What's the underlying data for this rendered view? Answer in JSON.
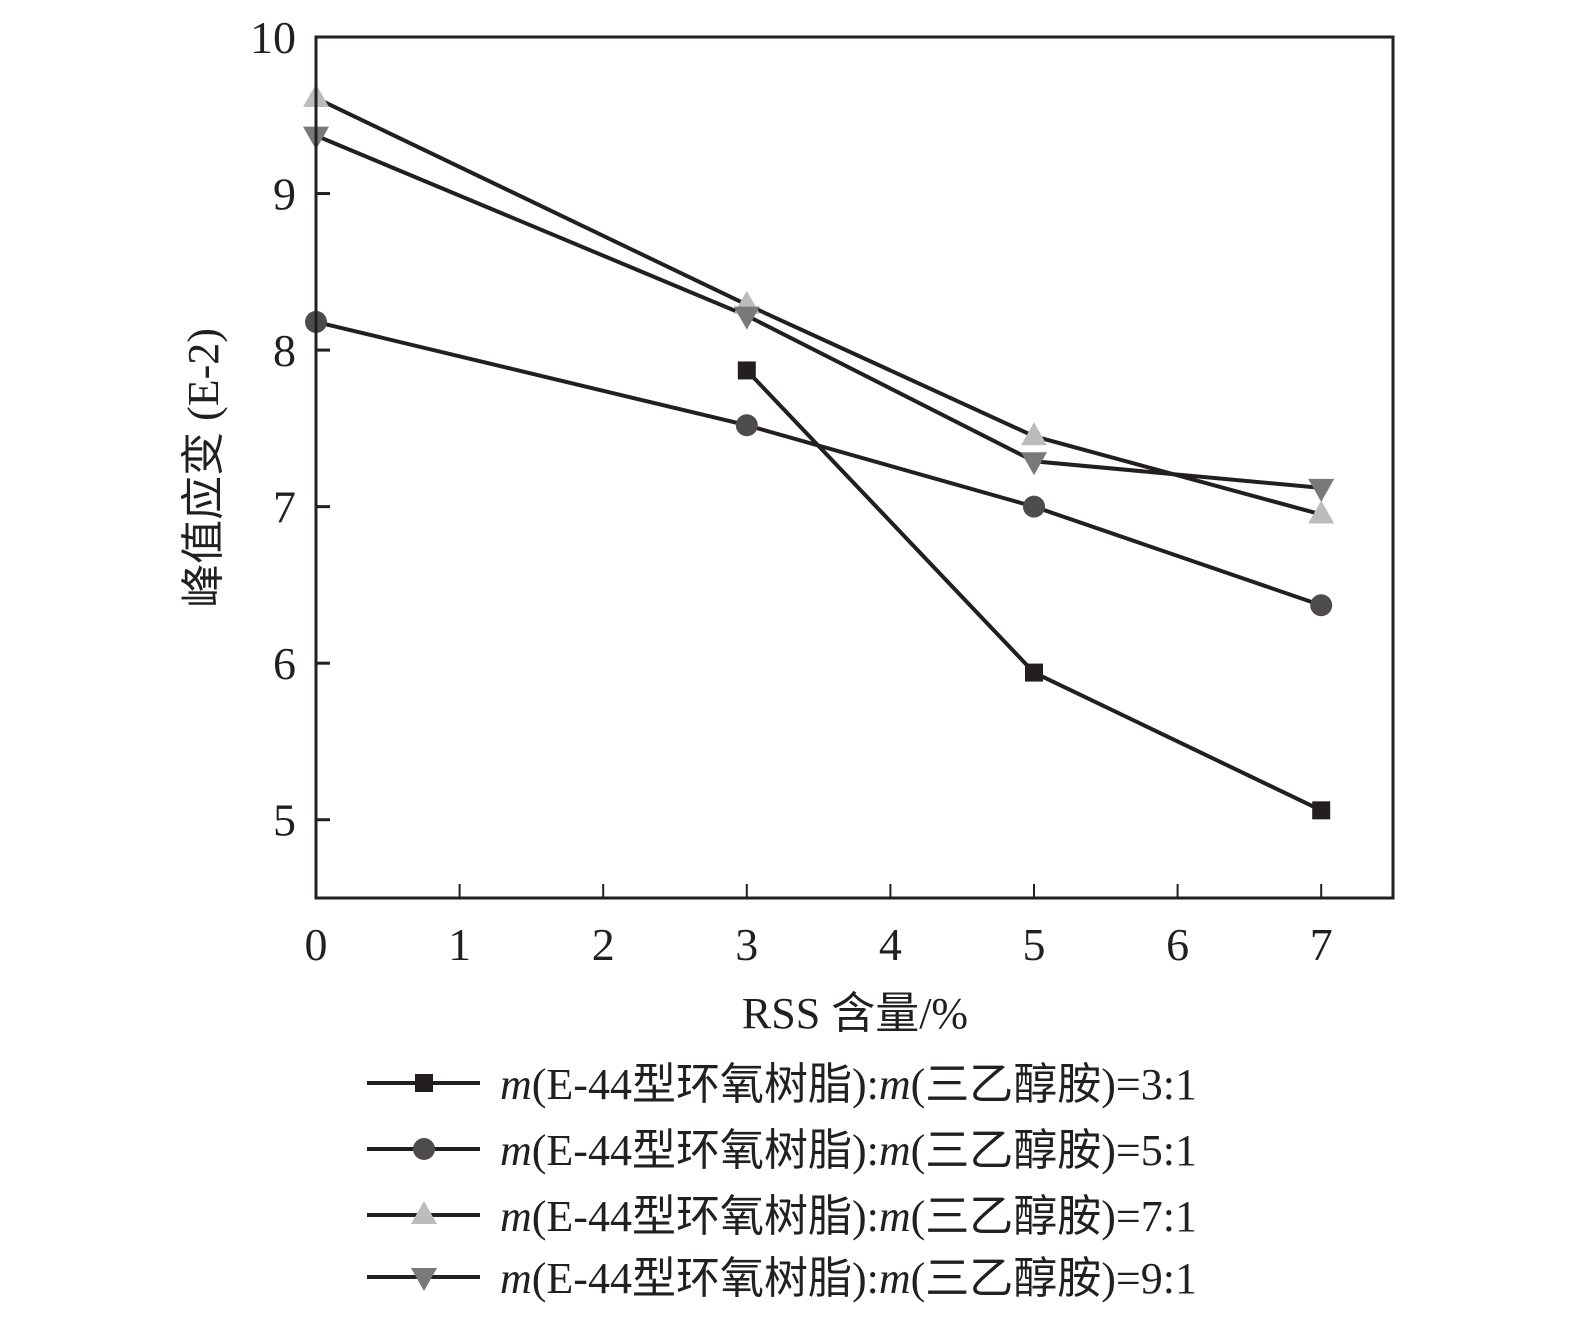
{
  "chart_data": {
    "type": "line",
    "title": "",
    "xlabel": "RSS 含量/%",
    "ylabel": "峰值应变 (E-2)",
    "xlim": [
      0,
      7.5
    ],
    "ylim": [
      4.5,
      10
    ],
    "xticks": [
      0,
      1,
      2,
      3,
      4,
      5,
      6,
      7
    ],
    "xtick_labels": [
      "0",
      "1",
      "2",
      "3",
      "4",
      "5",
      "6",
      "7"
    ],
    "yticks": [
      5,
      6,
      7,
      8,
      9,
      10
    ],
    "ytick_labels": [
      "5",
      "6",
      "7",
      "8",
      "9",
      "10"
    ],
    "grid": false,
    "legend_position": "bottom",
    "series": [
      {
        "name": "m(E-44型环氧树脂):m(三乙醇胺)=3:1",
        "legend_italic": "m",
        "legend_part1": "(E-44型环氧树脂):",
        "legend_part2": "(三乙醇胺)=3:1",
        "marker": "square",
        "color": "#231f20",
        "x": [
          3,
          5,
          7
        ],
        "y": [
          7.87,
          5.94,
          5.06
        ]
      },
      {
        "name": "m(E-44型环氧树脂):m(三乙醇胺)=5:1",
        "legend_italic": "m",
        "legend_part1": "(E-44型环氧树脂):",
        "legend_part2": "(三乙醇胺)=5:1",
        "marker": "circle",
        "color": "#4d4b4c",
        "x": [
          0,
          3,
          5,
          7
        ],
        "y": [
          8.18,
          7.52,
          7.0,
          6.37
        ]
      },
      {
        "name": "m(E-44型环氧树脂):m(三乙醇胺)=7:1",
        "legend_italic": "m",
        "legend_part1": "(E-44型环氧树脂):",
        "legend_part2": "(三乙醇胺)=7:1",
        "marker": "triangle-up",
        "color": "#bcbcbc",
        "x": [
          0,
          3,
          5,
          7
        ],
        "y": [
          9.61,
          8.29,
          7.45,
          6.95
        ]
      },
      {
        "name": "m(E-44型环氧树脂):m(三乙醇胺)=9:1",
        "legend_italic": "m",
        "legend_part1": "(E-44型环氧树脂):",
        "legend_part2": "(三乙醇胺)=9:1",
        "marker": "triangle-down",
        "color": "#7a797a",
        "x": [
          0,
          3,
          5,
          7
        ],
        "y": [
          9.37,
          8.22,
          7.29,
          7.12
        ]
      }
    ],
    "line_color": "#231f20"
  }
}
